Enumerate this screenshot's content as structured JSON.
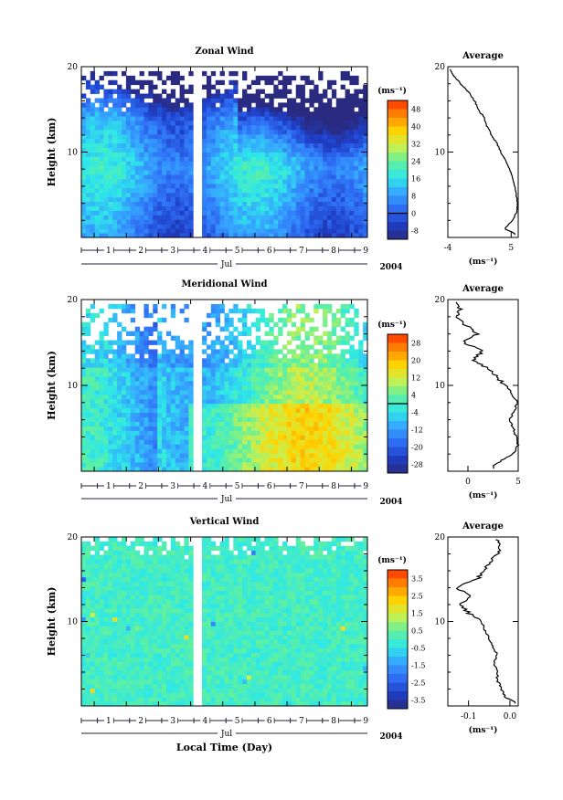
{
  "chart_data": [
    {
      "type": "heatmap",
      "title": "Zonal Wind",
      "ylabel": "Height (km)",
      "ylim": [
        0,
        20
      ],
      "yticks": [
        "20",
        "10"
      ],
      "xticks": [
        "1",
        "2",
        "3",
        "4",
        "5",
        "6",
        "7",
        "8",
        "9"
      ],
      "month": "Jul",
      "year": "2004",
      "colorbar_unit": "(ms⁻¹)",
      "colorbar_ticks": [
        "48",
        "40",
        "32",
        "24",
        "16",
        "8",
        "0",
        "-8"
      ],
      "colorbar_range": [
        -12,
        52
      ],
      "contour_level": 0,
      "data_gap_day": [
        4.1,
        4.35
      ],
      "profile": {
        "title": "Average",
        "xlabel": "(ms⁻¹)",
        "xlim": [
          -4,
          6
        ],
        "xticks": [
          "-4",
          "5"
        ],
        "yticks": [
          "20",
          "10"
        ],
        "heights": [
          0.5,
          1,
          2,
          3,
          4,
          5,
          6,
          7,
          8,
          9,
          10,
          11,
          12,
          13,
          14,
          15,
          16,
          17,
          18,
          19,
          19.5
        ],
        "values": [
          5.5,
          4.0,
          5.2,
          5.8,
          5.9,
          5.7,
          5.5,
          5.2,
          4.8,
          4.2,
          3.5,
          3.0,
          2.2,
          1.6,
          1.2,
          0.3,
          -0.2,
          -1.0,
          -2.2,
          -3.2,
          -3.6
        ]
      }
    },
    {
      "type": "heatmap",
      "title": "Meridional Wind",
      "ylabel": "Height (km)",
      "ylim": [
        0,
        20
      ],
      "yticks": [
        "20",
        "10"
      ],
      "xticks": [
        "1",
        "2",
        "3",
        "4",
        "5",
        "6",
        "7",
        "8",
        "9"
      ],
      "month": "Jul",
      "year": "2004",
      "colorbar_unit": "(ms⁻¹)",
      "colorbar_ticks": [
        "28",
        "20",
        "12",
        "4",
        "-4",
        "-12",
        "-20",
        "-28"
      ],
      "colorbar_range": [
        -32,
        32
      ],
      "contour_level": 0,
      "data_gap_day": [
        4.1,
        4.35
      ],
      "profile": {
        "title": "Average",
        "xlabel": "(ms⁻¹)",
        "xlim": [
          -2,
          5
        ],
        "xticks": [
          "0",
          "5"
        ],
        "yticks": [
          "20",
          "10"
        ],
        "heights": [
          0.5,
          1,
          2,
          3,
          4,
          5,
          6,
          7,
          8,
          9,
          10,
          11,
          12,
          13,
          14,
          15,
          16,
          17,
          18,
          19,
          19.5
        ],
        "values": [
          2.5,
          3.0,
          4.5,
          5.0,
          4.8,
          4.5,
          4.2,
          4.6,
          4.9,
          4.4,
          3.8,
          2.8,
          2.0,
          0.5,
          1.5,
          -0.5,
          1.0,
          -0.2,
          -1.0,
          -0.8,
          -1.2
        ]
      }
    },
    {
      "type": "heatmap",
      "title": "Vertical Wind",
      "ylabel": "Height (km)",
      "xlabel": "Local Time (Day)",
      "ylim": [
        0,
        20
      ],
      "yticks": [
        "20",
        "10"
      ],
      "xticks": [
        "1",
        "2",
        "3",
        "4",
        "5",
        "6",
        "7",
        "8",
        "9"
      ],
      "month": "Jul",
      "year": "2004",
      "colorbar_unit": "(ms⁻¹)",
      "colorbar_ticks": [
        "3.5",
        "2.5",
        "1.5",
        "0.5",
        "-0.5",
        "-1.5",
        "-2.5",
        "-3.5"
      ],
      "colorbar_range": [
        -4,
        4
      ],
      "data_gap_day": [
        4.1,
        4.35
      ],
      "profile": {
        "title": "Average",
        "xlabel": "(ms⁻¹)",
        "xlim": [
          -0.15,
          0.02
        ],
        "xticks": [
          "-0.1",
          "0.0"
        ],
        "yticks": [
          "20",
          "10"
        ],
        "heights": [
          0.5,
          1,
          2,
          3,
          4,
          5,
          6,
          7,
          8,
          9,
          10,
          11,
          12,
          13,
          14,
          15,
          16,
          17,
          18,
          19,
          19.5
        ],
        "values": [
          0.01,
          -0.01,
          -0.02,
          -0.03,
          -0.03,
          -0.04,
          -0.03,
          -0.04,
          -0.05,
          -0.06,
          -0.07,
          -0.1,
          -0.12,
          -0.09,
          -0.13,
          -0.08,
          -0.06,
          -0.05,
          -0.03,
          -0.02,
          -0.03
        ]
      }
    }
  ]
}
